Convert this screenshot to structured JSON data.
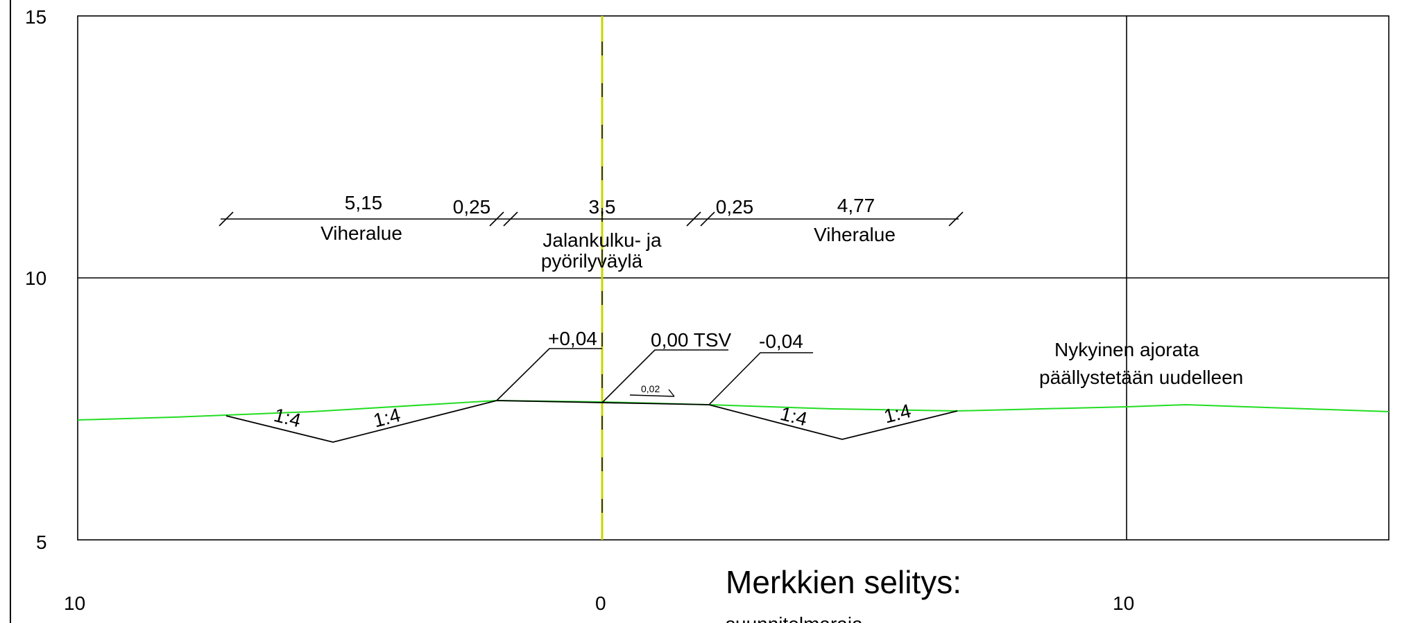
{
  "axis": {
    "y_labels": [
      "15",
      "10",
      "5"
    ],
    "x_labels": [
      "10",
      "0",
      "10"
    ]
  },
  "dimensions": {
    "values": [
      "5,15",
      "0,25",
      "3,5",
      "0,25",
      "4,77"
    ],
    "zone_labels": [
      "Viheralue",
      "Jalankulku- ja",
      "pyörilyväylä",
      "Viheralue"
    ]
  },
  "elevations": {
    "left": "+0,04",
    "center": "0,00 TSV",
    "right": "-0,04",
    "slope_small": "0,02"
  },
  "slopes": [
    "1:4",
    "1:4",
    "1:4",
    "1:4"
  ],
  "note": {
    "line1": "Nykyinen ajorata",
    "line2": "päällystetään uudelleen"
  },
  "legend": {
    "title": "Merkkien selitys:",
    "partial": "suunnitelmaraja"
  },
  "colors": {
    "ground": "#22dd22",
    "centerline": "#c8d400",
    "ink": "#000000"
  }
}
